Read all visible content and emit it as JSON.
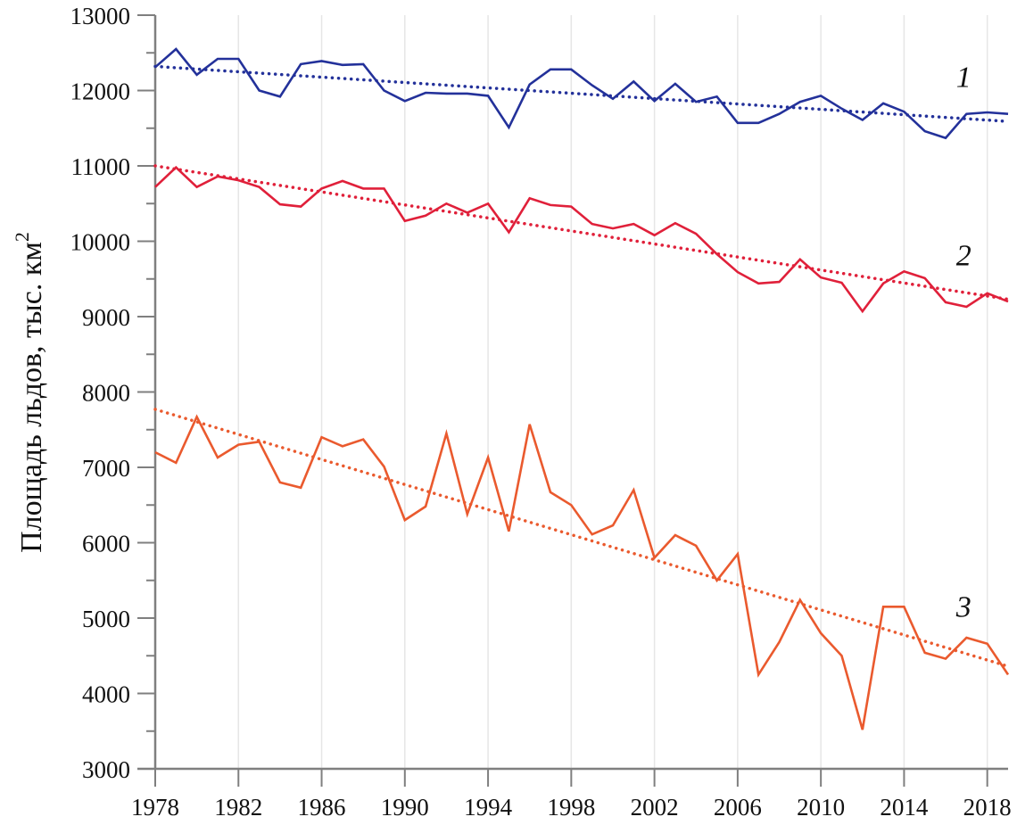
{
  "chart_data": {
    "type": "line",
    "title": "",
    "xlabel": "",
    "ylabel": "Площадь льдов, тыс. км",
    "ylabel_superscript": "2",
    "xlim": [
      1978,
      2019
    ],
    "ylim": [
      3000,
      13000
    ],
    "yticks": [
      3000,
      4000,
      5000,
      6000,
      7000,
      8000,
      9000,
      10000,
      11000,
      12000,
      13000
    ],
    "ytick_labels": [
      "3000",
      "4000",
      "5000",
      "6000",
      "7000",
      "8000",
      "9000",
      "10000",
      "11000",
      "12000",
      "13000"
    ],
    "xticks": [
      1978,
      1982,
      1986,
      1990,
      1994,
      1998,
      2002,
      2006,
      2010,
      2014,
      2018
    ],
    "xtick_labels": [
      "1978",
      "1982",
      "1986",
      "1990",
      "1994",
      "1998",
      "2002",
      "2006",
      "2010",
      "2014",
      "2018"
    ],
    "grid": "vertical",
    "x": [
      1978,
      1979,
      1980,
      1981,
      1982,
      1983,
      1984,
      1985,
      1986,
      1987,
      1988,
      1989,
      1990,
      1991,
      1992,
      1993,
      1994,
      1995,
      1996,
      1997,
      1998,
      1999,
      2000,
      2001,
      2002,
      2003,
      2004,
      2005,
      2006,
      2007,
      2008,
      2009,
      2010,
      2011,
      2012,
      2013,
      2014,
      2015,
      2016,
      2017,
      2018,
      2019
    ],
    "series": [
      {
        "name": "1",
        "label": "1",
        "color": "#23319a",
        "values": [
          12310,
          12550,
          12210,
          12420,
          12420,
          12000,
          11920,
          12350,
          12390,
          12340,
          12350,
          12000,
          11860,
          11970,
          11960,
          11960,
          11930,
          11510,
          12080,
          12280,
          12280,
          12070,
          11890,
          12120,
          11860,
          12090,
          11850,
          11920,
          11570,
          11570,
          11690,
          11850,
          11930,
          11760,
          11610,
          11830,
          11720,
          11460,
          11370,
          11690,
          11710,
          11690
        ],
        "trend": {
          "start": [
            1978,
            12320
          ],
          "end": [
            2019,
            11590
          ]
        }
      },
      {
        "name": "2",
        "label": "2",
        "color": "#e0203a",
        "values": [
          10720,
          10980,
          10720,
          10860,
          10810,
          10720,
          10490,
          10460,
          10700,
          10800,
          10700,
          10700,
          10270,
          10340,
          10500,
          10380,
          10500,
          10120,
          10570,
          10480,
          10460,
          10230,
          10170,
          10230,
          10080,
          10240,
          10100,
          9830,
          9590,
          9440,
          9460,
          9760,
          9520,
          9450,
          9070,
          9440,
          9600,
          9510,
          9190,
          9130,
          9310,
          9200
        ],
        "trend": {
          "start": [
            1978,
            11000
          ],
          "end": [
            2019,
            9230
          ]
        }
      },
      {
        "name": "3",
        "label": "3",
        "color": "#ea5a2e",
        "values": [
          7200,
          7060,
          7670,
          7130,
          7300,
          7340,
          6800,
          6730,
          7400,
          7280,
          7370,
          7010,
          6300,
          6480,
          7450,
          6380,
          7130,
          6150,
          7570,
          6670,
          6500,
          6110,
          6230,
          6700,
          5800,
          6100,
          5960,
          5500,
          5850,
          4250,
          4680,
          5240,
          4800,
          4500,
          3520,
          5150,
          5150,
          4540,
          4460,
          4740,
          4660,
          4250
        ],
        "trend": {
          "start": [
            1978,
            7770
          ],
          "end": [
            2019,
            4360
          ]
        }
      }
    ],
    "annotations": [
      {
        "text": "1",
        "series": "1",
        "at": [
          2016.5,
          12050
        ]
      },
      {
        "text": "2",
        "series": "2",
        "at": [
          2016.5,
          9680
        ]
      },
      {
        "text": "3",
        "series": "3",
        "at": [
          2016.5,
          5020
        ]
      }
    ]
  }
}
